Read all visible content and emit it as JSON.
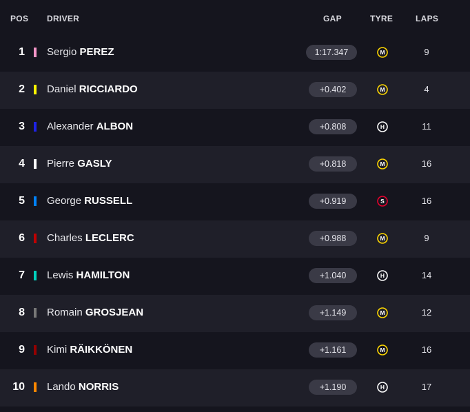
{
  "header": {
    "pos": "POS",
    "driver": "DRIVER",
    "gap": "GAP",
    "tyre": "TYRE",
    "laps": "LAPS"
  },
  "rows": [
    {
      "pos": "1",
      "first": "Sergio",
      "last": "PEREZ",
      "team_color": "#f596c8",
      "gap": "1:17.347",
      "tyre": "M",
      "laps": "9"
    },
    {
      "pos": "2",
      "first": "Daniel",
      "last": "RICCIARDO",
      "team_color": "#fff500",
      "gap": "+0.402",
      "tyre": "M",
      "laps": "4"
    },
    {
      "pos": "3",
      "first": "Alexander",
      "last": "ALBON",
      "team_color": "#1e22e6",
      "gap": "+0.808",
      "tyre": "H",
      "laps": "11"
    },
    {
      "pos": "4",
      "first": "Pierre",
      "last": "GASLY",
      "team_color": "#ffffff",
      "gap": "+0.818",
      "tyre": "M",
      "laps": "16"
    },
    {
      "pos": "5",
      "first": "George",
      "last": "RUSSELL",
      "team_color": "#0082fa",
      "gap": "+0.919",
      "tyre": "S",
      "laps": "16"
    },
    {
      "pos": "6",
      "first": "Charles",
      "last": "LECLERC",
      "team_color": "#c00000",
      "gap": "+0.988",
      "tyre": "M",
      "laps": "9"
    },
    {
      "pos": "7",
      "first": "Lewis",
      "last": "HAMILTON",
      "team_color": "#00d2be",
      "gap": "+1.040",
      "tyre": "H",
      "laps": "14"
    },
    {
      "pos": "8",
      "first": "Romain",
      "last": "GROSJEAN",
      "team_color": "#787878",
      "gap": "+1.149",
      "tyre": "M",
      "laps": "12"
    },
    {
      "pos": "9",
      "first": "Kimi",
      "last": "RÄIKKÖNEN",
      "team_color": "#960000",
      "gap": "+1.161",
      "tyre": "M",
      "laps": "16"
    },
    {
      "pos": "10",
      "first": "Lando",
      "last": "NORRIS",
      "team_color": "#ff8700",
      "gap": "+1.190",
      "tyre": "H",
      "laps": "17"
    }
  ],
  "tyre_colors": {
    "S": "#e8002d",
    "M": "#ffd800",
    "H": "#ffffff"
  }
}
